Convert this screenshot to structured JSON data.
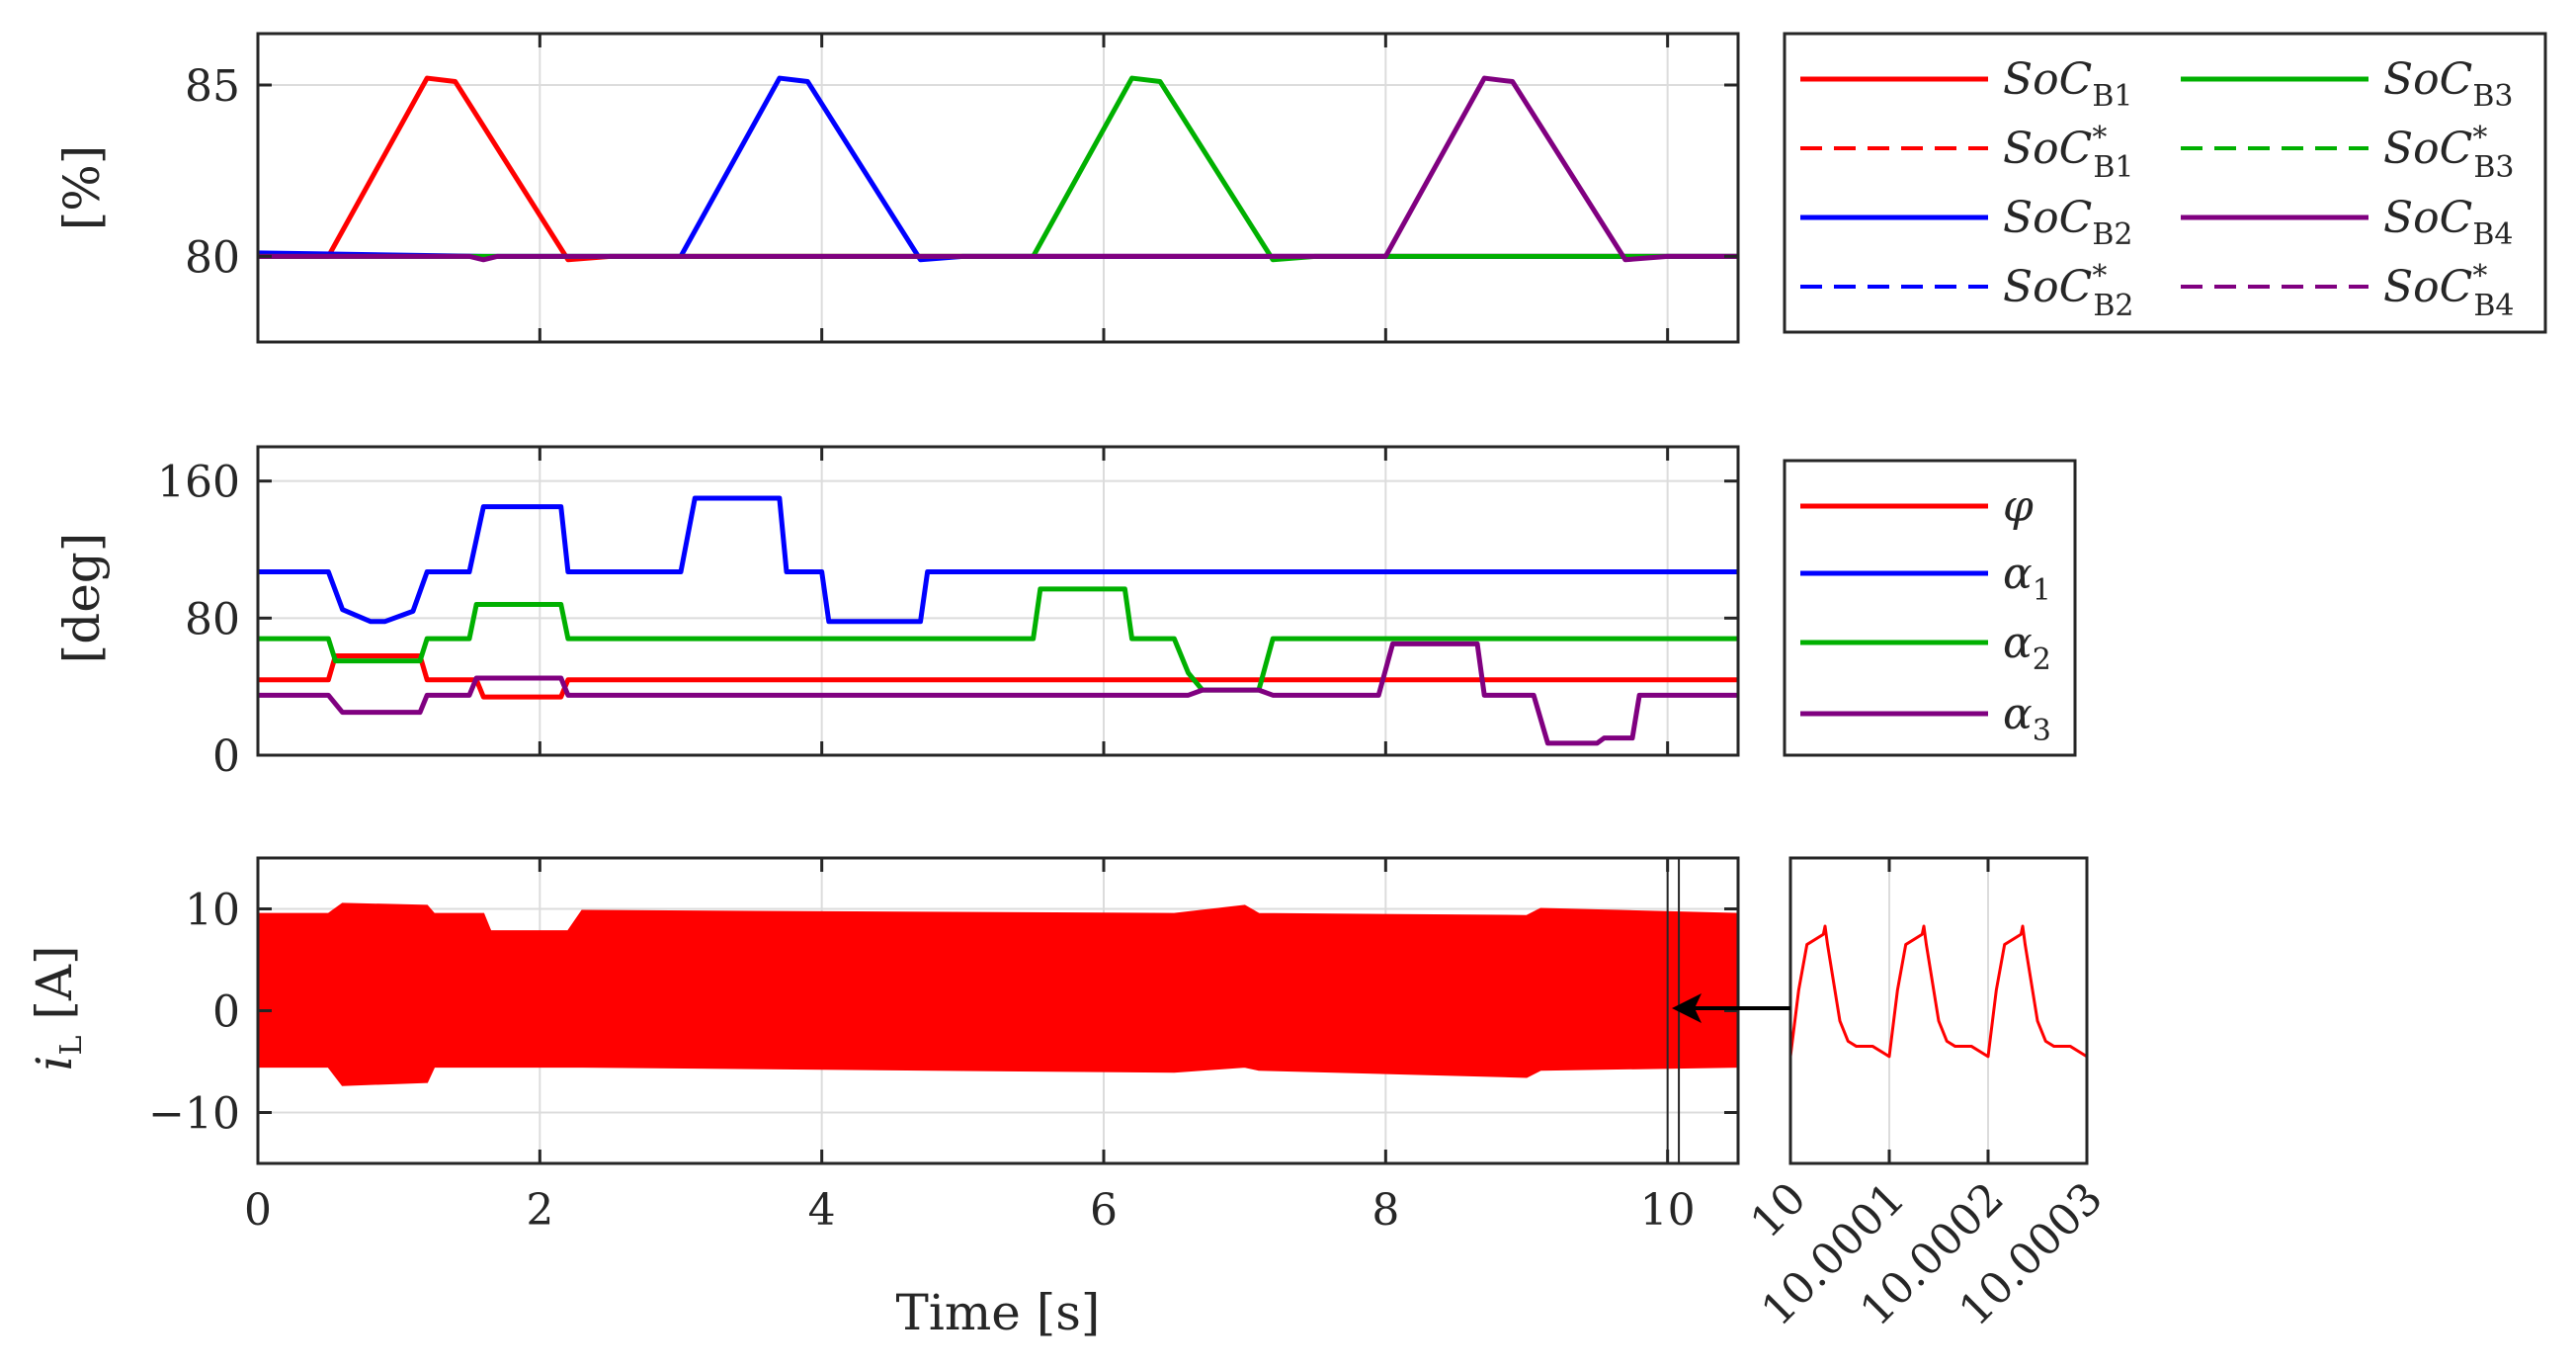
{
  "chart_data": [
    {
      "type": "line",
      "ylabel": "[%]",
      "xlim": [
        0,
        10.5
      ],
      "ylim": [
        77.5,
        86.5
      ],
      "xticks": [
        0,
        2,
        4,
        6,
        8,
        10
      ],
      "yticks": [
        80,
        85
      ],
      "ytick_labels": [
        "80",
        "85"
      ],
      "grid": true,
      "legend_position": "right",
      "legend_columns": 2,
      "series": [
        {
          "name": "SoC_B1",
          "style": "solid",
          "color": "#ff0000",
          "x": [
            0,
            0.5,
            1.2,
            1.4,
            2.2,
            2.5,
            3.0,
            10.5
          ],
          "y": [
            80,
            80,
            85.2,
            85.1,
            79.9,
            80,
            80,
            80
          ]
        },
        {
          "name": "SoC*_B1",
          "style": "dashed",
          "color": "#ff0000",
          "x": [
            0,
            0.5,
            1.2,
            1.4,
            2.2,
            2.5,
            3.0,
            10.5
          ],
          "y": [
            80,
            80,
            85.2,
            85.1,
            79.9,
            80,
            80,
            80
          ]
        },
        {
          "name": "SoC_B2",
          "style": "solid",
          "color": "#0000ff",
          "x": [
            0,
            1.6,
            3.0,
            3.7,
            3.9,
            4.7,
            5.0,
            5.5,
            10.5
          ],
          "y": [
            80.1,
            80,
            80,
            85.2,
            85.1,
            79.9,
            80,
            80,
            80
          ]
        },
        {
          "name": "SoC*_B2",
          "style": "dashed",
          "color": "#0000ff",
          "x": [
            0,
            1.6,
            3.0,
            3.7,
            3.9,
            4.7,
            5.0,
            5.5,
            10.5
          ],
          "y": [
            80.1,
            80,
            80,
            85.2,
            85.1,
            79.9,
            80,
            80,
            80
          ]
        },
        {
          "name": "SoC_B3",
          "style": "solid",
          "color": "#00b000",
          "x": [
            0,
            5.5,
            6.2,
            6.4,
            7.2,
            7.5,
            10.5
          ],
          "y": [
            80,
            80,
            85.2,
            85.1,
            79.9,
            80,
            80
          ]
        },
        {
          "name": "SoC*_B3",
          "style": "dashed",
          "color": "#00b000",
          "x": [
            0,
            5.5,
            6.2,
            6.4,
            7.2,
            7.5,
            10.5
          ],
          "y": [
            80,
            80,
            85.2,
            85.1,
            79.9,
            80,
            80
          ]
        },
        {
          "name": "SoC_B4",
          "style": "solid",
          "color": "#800080",
          "x": [
            0,
            1.5,
            1.6,
            1.7,
            2.2,
            8.0,
            8.7,
            8.9,
            9.7,
            10.0,
            10.5
          ],
          "y": [
            80,
            80,
            79.9,
            80,
            80,
            80,
            85.2,
            85.1,
            79.9,
            80,
            80
          ]
        },
        {
          "name": "SoC*_B4",
          "style": "dashed",
          "color": "#800080",
          "x": [
            0,
            1.5,
            1.6,
            1.7,
            2.2,
            8.0,
            8.7,
            8.9,
            9.7,
            10.0,
            10.5
          ],
          "y": [
            80,
            80,
            79.9,
            80,
            80,
            80,
            85.2,
            85.1,
            79.9,
            80,
            80
          ]
        }
      ]
    },
    {
      "type": "line",
      "ylabel": "[deg]",
      "xlim": [
        0,
        10.5
      ],
      "ylim": [
        0,
        180
      ],
      "xticks": [
        0,
        2,
        4,
        6,
        8,
        10
      ],
      "yticks": [
        0,
        80,
        160
      ],
      "ytick_labels": [
        "0",
        "80",
        "160"
      ],
      "grid": true,
      "legend_position": "right",
      "series": [
        {
          "name": "φ",
          "color": "#ff0000",
          "x": [
            0,
            0.5,
            0.55,
            1.15,
            1.2,
            1.55,
            1.6,
            2.15,
            2.2,
            10.5
          ],
          "y": [
            44,
            44,
            58,
            58,
            44,
            44,
            34,
            34,
            44,
            44
          ]
        },
        {
          "name": "α1",
          "color": "#0000ff",
          "x": [
            0,
            0.5,
            0.6,
            0.8,
            0.9,
            1.1,
            1.2,
            1.5,
            1.6,
            2.15,
            2.2,
            3.0,
            3.1,
            3.7,
            3.75,
            4.0,
            4.05,
            4.7,
            4.75,
            10.5
          ],
          "y": [
            107,
            107,
            85,
            78,
            78,
            84,
            107,
            107,
            145,
            145,
            107,
            107,
            150,
            150,
            107,
            107,
            78,
            78,
            107,
            107
          ]
        },
        {
          "name": "α2",
          "color": "#00b000",
          "x": [
            0,
            0.5,
            0.55,
            1.15,
            1.2,
            1.5,
            1.55,
            2.15,
            2.2,
            5.5,
            5.55,
            6.15,
            6.2,
            6.5,
            6.6,
            6.7,
            7.1,
            7.2,
            10.5
          ],
          "y": [
            68,
            68,
            55,
            55,
            68,
            68,
            88,
            88,
            68,
            68,
            97,
            97,
            68,
            68,
            48,
            38,
            38,
            68,
            68
          ]
        },
        {
          "name": "α3",
          "color": "#800080",
          "x": [
            0,
            0.5,
            0.6,
            1.15,
            1.2,
            1.5,
            1.55,
            2.15,
            2.2,
            6.6,
            6.7,
            7.1,
            7.2,
            7.95,
            8.05,
            8.65,
            8.7,
            9.05,
            9.15,
            9.5,
            9.55,
            9.75,
            9.8,
            10.5
          ],
          "y": [
            35,
            35,
            25,
            25,
            35,
            35,
            45,
            45,
            35,
            35,
            38,
            38,
            35,
            35,
            65,
            65,
            35,
            35,
            7,
            7,
            10,
            10,
            35,
            35
          ]
        }
      ]
    },
    {
      "type": "area",
      "ylabel": "i_L [A]",
      "xlabel": "Time [s]",
      "xlim": [
        0,
        10.5
      ],
      "ylim": [
        -15,
        15
      ],
      "xticks": [
        0,
        2,
        4,
        6,
        8,
        10
      ],
      "xtick_labels": [
        "0",
        "2",
        "4",
        "6",
        "8",
        "10"
      ],
      "yticks": [
        -10,
        0,
        10
      ],
      "ytick_labels": [
        "−10",
        "0",
        "10"
      ],
      "grid": true,
      "color": "#ff0000",
      "envelope": {
        "x": [
          0,
          0.5,
          0.6,
          1.2,
          1.25,
          1.6,
          1.65,
          2.2,
          2.3,
          6.5,
          7.0,
          7.1,
          9.0,
          9.1,
          10.5
        ],
        "upper": [
          9.5,
          9.5,
          10.5,
          10.3,
          9.5,
          9.5,
          7.8,
          7.8,
          9.8,
          9.5,
          10.3,
          9.5,
          9.3,
          10.0,
          9.5
        ],
        "lower": [
          -5.5,
          -5.5,
          -7.3,
          -7.0,
          -5.5,
          -5.5,
          -5.5,
          -5.5,
          -5.5,
          -6.0,
          -5.5,
          -5.8,
          -6.5,
          -5.8,
          -5.5
        ]
      },
      "zoom_window": [
        10.0,
        10.08
      ],
      "annotation_arrow": "from zoom inset to zoom window"
    },
    {
      "type": "line",
      "xlim": [
        10,
        10.0003
      ],
      "ylim": [
        -15,
        15
      ],
      "xticks": [
        10,
        10.0001,
        10.0002,
        10.0003
      ],
      "xtick_labels": [
        "10",
        "10.0001",
        "10.0002",
        "10.0003"
      ],
      "grid": true,
      "color": "#ff0000",
      "x": [
        10,
        10.0000083,
        10.0000167,
        10.0000333,
        10.000035,
        10.0000375,
        10.000045,
        10.00005,
        10.0000583,
        10.0000667,
        10.0000833,
        10.0001,
        10.0001083,
        10.0001167,
        10.0001333,
        10.000135,
        10.0001375,
        10.000145,
        10.00015,
        10.0001583,
        10.0001667,
        10.0001833,
        10.0002,
        10.0002083,
        10.0002167,
        10.0002333,
        10.000235,
        10.0002375,
        10.000245,
        10.00025,
        10.0002583,
        10.0002667,
        10.0002833,
        10.0003
      ],
      "y": [
        -4.5,
        2,
        6.5,
        7.5,
        8.3,
        6.5,
        2,
        -1,
        -3,
        -3.5,
        -3.5,
        -4.5,
        2,
        6.5,
        7.5,
        8.3,
        6.5,
        2,
        -1,
        -3,
        -3.5,
        -3.5,
        -4.5,
        2,
        6.5,
        7.5,
        8.3,
        6.5,
        2,
        -1,
        -3,
        -3.5,
        -3.5,
        -4.5
      ]
    }
  ]
}
